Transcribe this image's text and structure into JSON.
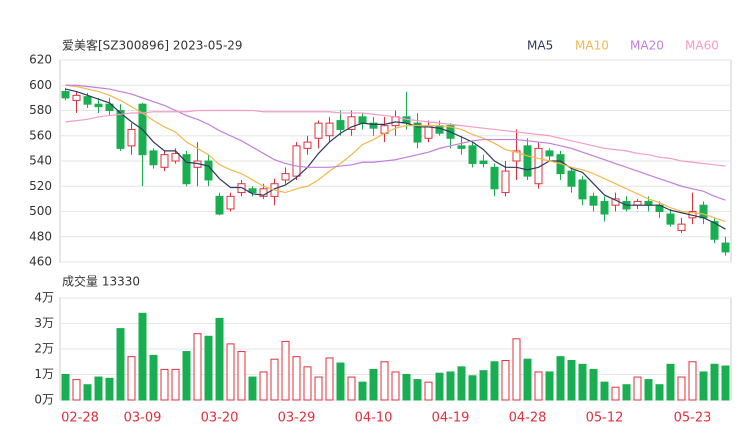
{
  "chart_data": [
    {
      "type": "candlestick",
      "title": "爱美客[SZ300896] 2023-05-29",
      "up_color": "#e0303e",
      "down_color": "#1aae52",
      "grid": true,
      "ylim": [
        460,
        620
      ],
      "yticks": [
        460,
        480,
        500,
        520,
        540,
        560,
        580,
        600,
        620
      ],
      "open": [
        595,
        588,
        591,
        585,
        585,
        580,
        552,
        585,
        548,
        535,
        540,
        545,
        535,
        540,
        512,
        502,
        515,
        518,
        512,
        512,
        525,
        528,
        550,
        558,
        560,
        572,
        565,
        575,
        570,
        562,
        568,
        575,
        570,
        558,
        568,
        568,
        552,
        552,
        540,
        535,
        515,
        540,
        552,
        522,
        548,
        545,
        532,
        525,
        512,
        508,
        505,
        508,
        505,
        508,
        505,
        498,
        485,
        495,
        505,
        492,
        475
      ],
      "close": [
        590,
        592,
        585,
        583,
        580,
        550,
        565,
        545,
        537,
        545,
        546,
        522,
        540,
        525,
        498,
        512,
        522,
        515,
        518,
        522,
        530,
        552,
        555,
        570,
        570,
        565,
        575,
        570,
        566,
        568,
        575,
        570,
        555,
        568,
        562,
        558,
        550,
        538,
        538,
        518,
        532,
        548,
        528,
        550,
        544,
        530,
        520,
        510,
        505,
        498,
        510,
        502,
        508,
        505,
        500,
        490,
        490,
        500,
        495,
        478,
        468
      ],
      "low": [
        588,
        578,
        582,
        578,
        576,
        548,
        545,
        520,
        534,
        532,
        538,
        520,
        520,
        520,
        497,
        500,
        512,
        512,
        510,
        505,
        522,
        525,
        545,
        550,
        555,
        560,
        560,
        565,
        560,
        555,
        560,
        565,
        550,
        555,
        560,
        550,
        545,
        535,
        535,
        512,
        512,
        525,
        525,
        518,
        540,
        525,
        515,
        505,
        500,
        492,
        500,
        500,
        502,
        500,
        495,
        488,
        483,
        490,
        490,
        475,
        465
      ],
      "high": [
        598,
        595,
        594,
        590,
        590,
        585,
        570,
        586,
        550,
        548,
        550,
        548,
        555,
        545,
        515,
        515,
        525,
        520,
        522,
        526,
        535,
        555,
        560,
        572,
        575,
        580,
        580,
        578,
        575,
        575,
        580,
        595,
        578,
        572,
        572,
        570,
        560,
        555,
        545,
        538,
        540,
        565,
        558,
        555,
        550,
        548,
        535,
        528,
        515,
        512,
        515,
        512,
        510,
        512,
        508,
        502,
        495,
        515,
        508,
        495,
        480
      ],
      "series": [
        {
          "name": "MA5",
          "color": "#2e3a5c",
          "values": [
            597,
            595,
            592,
            589,
            586,
            578,
            571,
            565,
            555,
            548,
            548,
            539,
            538,
            536,
            526,
            519,
            519,
            514,
            513,
            518,
            521,
            527,
            535,
            546,
            555,
            562,
            567,
            570,
            569,
            569,
            571,
            570,
            567,
            567,
            566,
            563,
            559,
            555,
            549,
            540,
            535,
            535,
            533,
            535,
            540,
            540,
            534,
            531,
            522,
            513,
            509,
            505,
            505,
            505,
            505,
            501,
            499,
            497,
            495,
            491,
            486
          ]
        },
        {
          "name": "MA10",
          "color": "#f2b84b",
          "values": [
            600,
            599,
            597,
            595,
            592,
            588,
            583,
            578,
            572,
            567,
            563,
            555,
            550,
            545,
            537,
            533,
            530,
            525,
            520,
            517,
            515,
            518,
            520,
            525,
            532,
            538,
            545,
            553,
            557,
            562,
            566,
            568,
            568,
            568,
            568,
            567,
            565,
            561,
            558,
            554,
            549,
            547,
            544,
            542,
            540,
            538,
            535,
            533,
            530,
            526,
            522,
            518,
            514,
            510,
            507,
            503,
            500,
            499,
            498,
            495,
            492
          ]
        },
        {
          "name": "MA20",
          "color": "#c17fdc",
          "values": [
            600,
            600,
            599,
            598,
            597,
            595,
            593,
            590,
            587,
            584,
            580,
            576,
            573,
            569,
            564,
            560,
            556,
            551,
            546,
            541,
            538,
            536,
            535,
            535,
            535,
            536,
            537,
            539,
            539,
            540,
            541,
            543,
            545,
            547,
            550,
            552,
            554,
            556,
            557,
            557,
            557,
            557,
            556,
            555,
            554,
            552,
            550,
            547,
            544,
            541,
            538,
            535,
            532,
            529,
            526,
            523,
            520,
            518,
            516,
            512,
            509
          ]
        },
        {
          "name": "MA60",
          "color": "#f39cc6",
          "values": [
            571,
            572,
            573,
            575,
            576,
            577,
            578,
            578,
            579,
            579,
            579,
            579,
            580,
            580,
            580,
            580,
            580,
            580,
            579,
            579,
            579,
            579,
            579,
            579,
            579,
            578,
            578,
            578,
            577,
            576,
            575,
            573,
            572,
            571,
            570,
            569,
            568,
            567,
            566,
            565,
            564,
            563,
            562,
            561,
            560,
            558,
            556,
            554,
            552,
            550,
            549,
            548,
            546,
            545,
            543,
            542,
            540,
            539,
            538,
            537,
            536
          ]
        }
      ]
    },
    {
      "type": "bar",
      "title": "成交量 13330",
      "categories": [
        "02-28",
        null,
        null,
        null,
        null,
        null,
        null,
        "03-09",
        null,
        null,
        null,
        null,
        null,
        null,
        "03-20",
        null,
        null,
        null,
        null,
        null,
        null,
        "03-29",
        null,
        null,
        null,
        null,
        null,
        null,
        "04-10",
        null,
        null,
        null,
        null,
        null,
        null,
        "04-19",
        null,
        null,
        null,
        null,
        null,
        null,
        "04-28",
        null,
        null,
        null,
        null,
        null,
        null,
        "05-12",
        null,
        null,
        null,
        null,
        null,
        null,
        null,
        "05-23",
        null,
        null,
        null
      ],
      "values": [
        1.0,
        0.8,
        0.6,
        0.9,
        0.85,
        2.8,
        1.7,
        3.4,
        1.75,
        1.2,
        1.2,
        1.9,
        2.6,
        2.5,
        3.2,
        2.2,
        1.9,
        0.9,
        1.1,
        1.6,
        2.3,
        1.7,
        1.3,
        0.9,
        1.65,
        1.45,
        0.9,
        0.7,
        1.2,
        1.5,
        1.1,
        1.0,
        0.8,
        0.7,
        1.05,
        1.1,
        1.3,
        0.95,
        1.15,
        1.5,
        1.55,
        2.4,
        1.6,
        1.1,
        1.1,
        1.7,
        1.55,
        1.4,
        1.2,
        0.7,
        0.5,
        0.6,
        0.9,
        0.8,
        0.6,
        1.4,
        0.9,
        1.5,
        1.1,
        1.4,
        1.333
      ],
      "ylim": [
        0,
        4
      ],
      "yticks": [
        {
          "value": 0,
          "label": "0万"
        },
        {
          "value": 1,
          "label": "1万"
        },
        {
          "value": 2,
          "label": "2万"
        },
        {
          "value": 3,
          "label": "3万"
        },
        {
          "value": 4,
          "label": "4万"
        }
      ]
    }
  ]
}
